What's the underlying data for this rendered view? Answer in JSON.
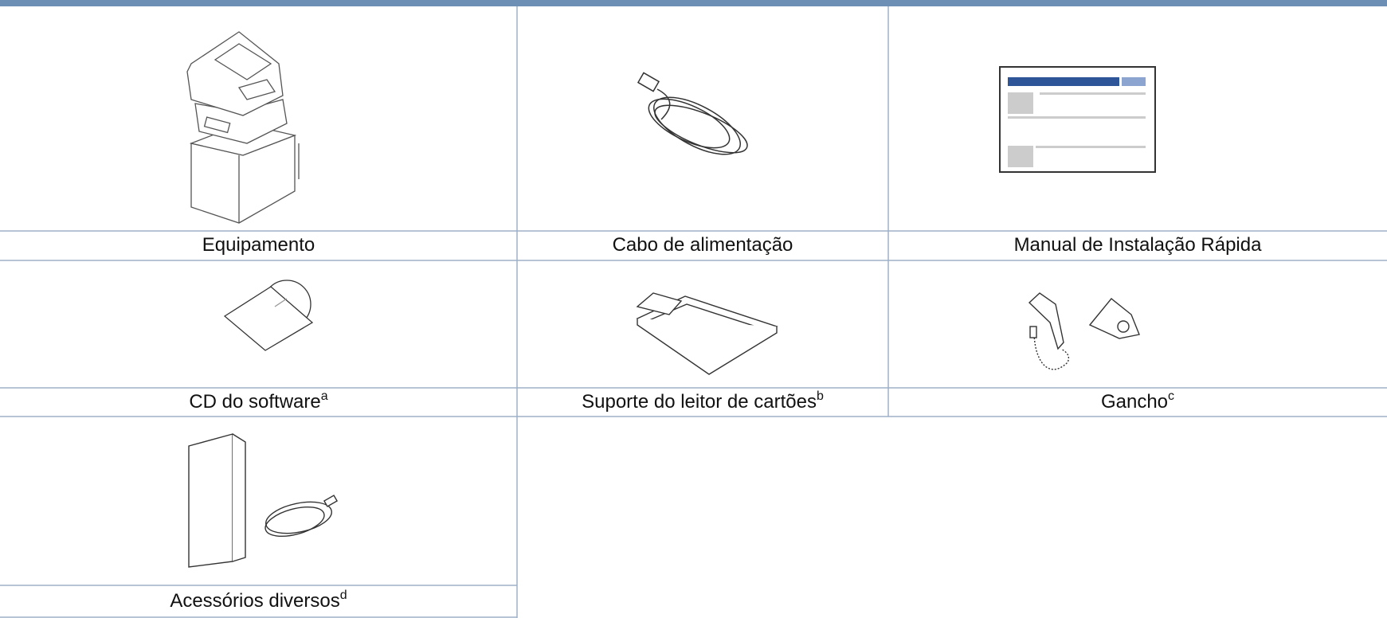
{
  "items": [
    {
      "label": "Equipamento"
    },
    {
      "label": "Cabo de alimentação"
    },
    {
      "label": "Manual de Instalação Rápida"
    },
    {
      "label": "CD do software",
      "note": "a"
    },
    {
      "label": "Suporte do leitor de cartões",
      "note": "b"
    },
    {
      "label": "Gancho",
      "note": "c"
    },
    {
      "label": "Acessórios diversos",
      "note": "d"
    }
  ]
}
